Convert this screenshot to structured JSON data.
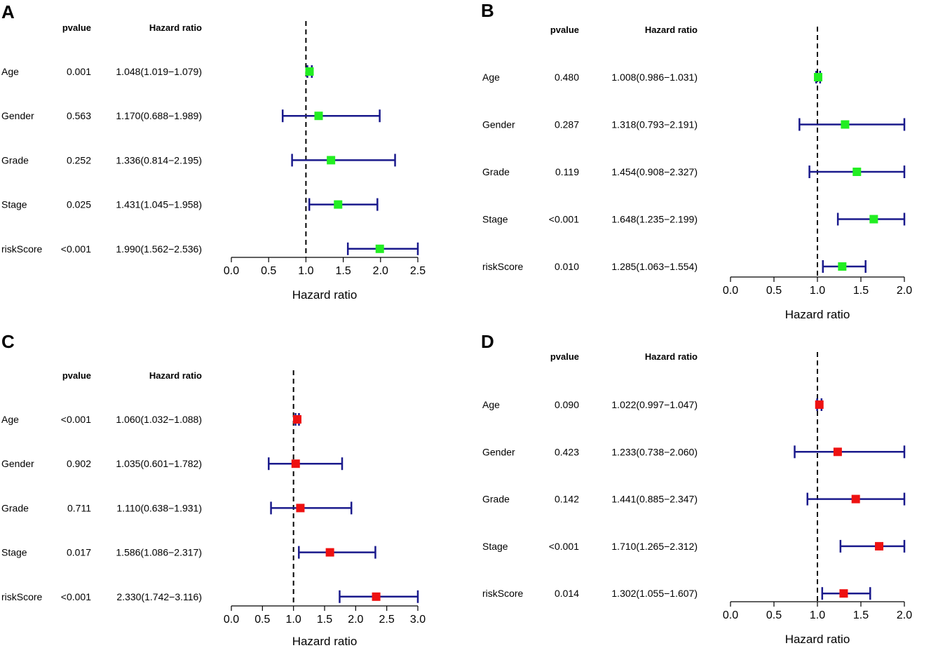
{
  "chart_data": [
    {
      "type": "forest",
      "panel": "A",
      "headers": {
        "pvalue": "pvalue",
        "hr": "Hazard ratio"
      },
      "xlabel": "Hazard ratio",
      "ticks": [
        "0.0",
        "0.5",
        "1.0",
        "1.5",
        "2.0",
        "2.5"
      ],
      "xlim": [
        0,
        2.5
      ],
      "reference": 1.0,
      "marker_color": "#22ee22",
      "line_color": "#1a1a8c",
      "rows": [
        {
          "label": "Age",
          "p": "0.001",
          "hr_text": "1.048(1.019−1.079)",
          "hr": 1.048,
          "low": 1.019,
          "high": 1.079
        },
        {
          "label": "Gender",
          "p": "0.563",
          "hr_text": "1.170(0.688−1.989)",
          "hr": 1.17,
          "low": 0.688,
          "high": 1.989
        },
        {
          "label": "Grade",
          "p": "0.252",
          "hr_text": "1.336(0.814−2.195)",
          "hr": 1.336,
          "low": 0.814,
          "high": 2.195
        },
        {
          "label": "Stage",
          "p": "0.025",
          "hr_text": "1.431(1.045−1.958)",
          "hr": 1.431,
          "low": 1.045,
          "high": 1.958
        },
        {
          "label": "riskScore",
          "p": "<0.001",
          "hr_text": "1.990(1.562−2.536)",
          "hr": 1.99,
          "low": 1.562,
          "high": 2.536
        }
      ]
    },
    {
      "type": "forest",
      "panel": "B",
      "headers": {
        "pvalue": "pvalue",
        "hr": "Hazard ratio"
      },
      "xlabel": "Hazard ratio",
      "ticks": [
        "0.0",
        "0.5",
        "1.0",
        "1.5",
        "2.0"
      ],
      "xlim": [
        0,
        2.0
      ],
      "reference": 1.0,
      "marker_color": "#22ee22",
      "line_color": "#1a1a8c",
      "rows": [
        {
          "label": "Age",
          "p": "0.480",
          "hr_text": "1.008(0.986−1.031)",
          "hr": 1.008,
          "low": 0.986,
          "high": 1.031
        },
        {
          "label": "Gender",
          "p": "0.287",
          "hr_text": "1.318(0.793−2.191)",
          "hr": 1.318,
          "low": 0.793,
          "high": 2.191
        },
        {
          "label": "Grade",
          "p": "0.119",
          "hr_text": "1.454(0.908−2.327)",
          "hr": 1.454,
          "low": 0.908,
          "high": 2.327
        },
        {
          "label": "Stage",
          "p": "<0.001",
          "hr_text": "1.648(1.235−2.199)",
          "hr": 1.648,
          "low": 1.235,
          "high": 2.199
        },
        {
          "label": "riskScore",
          "p": "0.010",
          "hr_text": "1.285(1.063−1.554)",
          "hr": 1.285,
          "low": 1.063,
          "high": 1.554
        }
      ]
    },
    {
      "type": "forest",
      "panel": "C",
      "headers": {
        "pvalue": "pvalue",
        "hr": "Hazard ratio"
      },
      "xlabel": "Hazard ratio",
      "ticks": [
        "0.0",
        "0.5",
        "1.0",
        "1.5",
        "2.0",
        "2.5",
        "3.0"
      ],
      "xlim": [
        0,
        3.0
      ],
      "reference": 1.0,
      "marker_color": "#ee1111",
      "line_color": "#1a1a8c",
      "rows": [
        {
          "label": "Age",
          "p": "<0.001",
          "hr_text": "1.060(1.032−1.088)",
          "hr": 1.06,
          "low": 1.032,
          "high": 1.088
        },
        {
          "label": "Gender",
          "p": "0.902",
          "hr_text": "1.035(0.601−1.782)",
          "hr": 1.035,
          "low": 0.601,
          "high": 1.782
        },
        {
          "label": "Grade",
          "p": "0.711",
          "hr_text": "1.110(0.638−1.931)",
          "hr": 1.11,
          "low": 0.638,
          "high": 1.931
        },
        {
          "label": "Stage",
          "p": "0.017",
          "hr_text": "1.586(1.086−2.317)",
          "hr": 1.586,
          "low": 1.086,
          "high": 2.317
        },
        {
          "label": "riskScore",
          "p": "<0.001",
          "hr_text": "2.330(1.742−3.116)",
          "hr": 2.33,
          "low": 1.742,
          "high": 3.116
        }
      ]
    },
    {
      "type": "forest",
      "panel": "D",
      "headers": {
        "pvalue": "pvalue",
        "hr": "Hazard ratio"
      },
      "xlabel": "Hazard ratio",
      "ticks": [
        "0.0",
        "0.5",
        "1.0",
        "1.5",
        "2.0"
      ],
      "xlim": [
        0,
        2.0
      ],
      "reference": 1.0,
      "marker_color": "#ee1111",
      "line_color": "#1a1a8c",
      "rows": [
        {
          "label": "Age",
          "p": "0.090",
          "hr_text": "1.022(0.997−1.047)",
          "hr": 1.022,
          "low": 0.997,
          "high": 1.047
        },
        {
          "label": "Gender",
          "p": "0.423",
          "hr_text": "1.233(0.738−2.060)",
          "hr": 1.233,
          "low": 0.738,
          "high": 2.06
        },
        {
          "label": "Grade",
          "p": "0.142",
          "hr_text": "1.441(0.885−2.347)",
          "hr": 1.441,
          "low": 0.885,
          "high": 2.347
        },
        {
          "label": "Stage",
          "p": "<0.001",
          "hr_text": "1.710(1.265−2.312)",
          "hr": 1.71,
          "low": 1.265,
          "high": 2.312
        },
        {
          "label": "riskScore",
          "p": "0.014",
          "hr_text": "1.302(1.055−1.607)",
          "hr": 1.302,
          "low": 1.055,
          "high": 1.607
        }
      ]
    }
  ]
}
